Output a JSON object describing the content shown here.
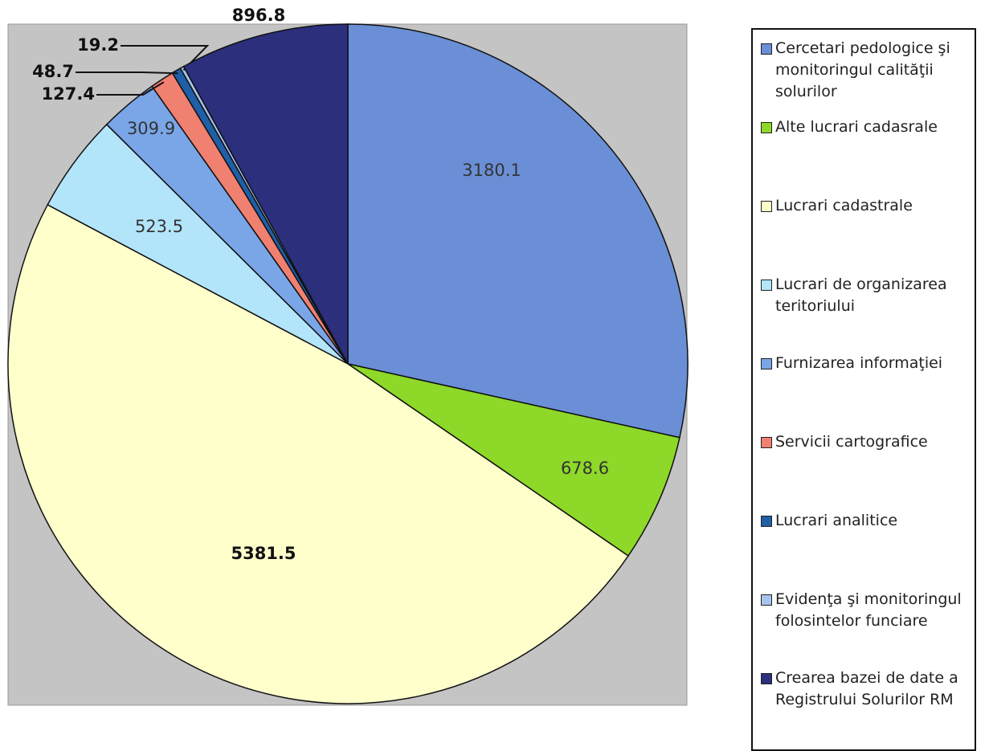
{
  "chart_data": {
    "type": "pie",
    "categories": [
      "Cercetari pedologice şi monitoringul calităţii solurilor",
      "Alte lucrari cadasrale",
      "Lucrari cadastrale",
      "Lucrari de organizarea teritoriului",
      "Furnizarea informaţiei",
      "Servicii cartografice",
      "Lucrari analitice",
      "Evidenţa şi monitoringul folosintelor funciare",
      "Crearea bazei de date a Registrului Solurilor RM"
    ],
    "values": [
      3180.1,
      678.6,
      5381.5,
      523.5,
      309.9,
      127.4,
      48.7,
      19.2,
      896.8
    ],
    "colors": [
      "#6a8fd6",
      "#8ed829",
      "#ffffcc",
      "#b3e5fa",
      "#7aa6e8",
      "#f08070",
      "#1f5fa8",
      "#a9c4ec",
      "#2b2f7c"
    ],
    "legend": "right"
  }
}
